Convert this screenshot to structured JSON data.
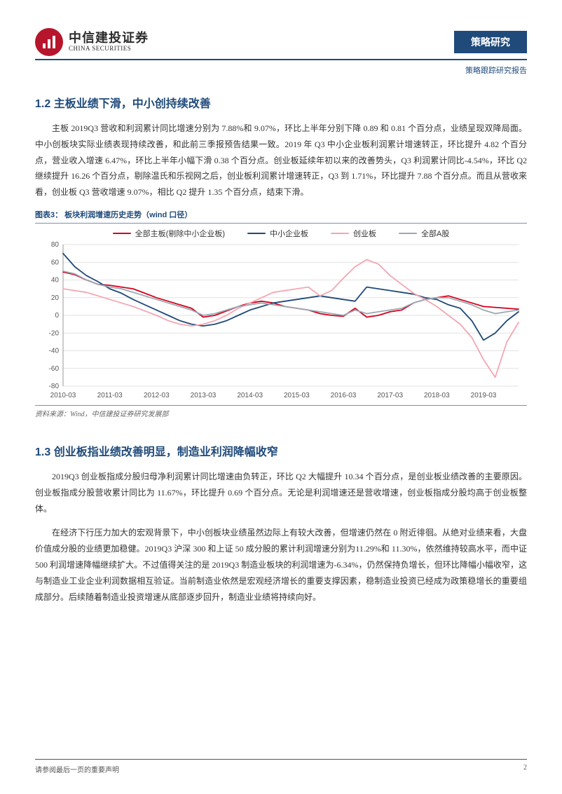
{
  "header": {
    "company_cn": "中信建投证券",
    "company_en": "CHINA SECURITIES",
    "category": "策略研究",
    "subcategory": "策略跟踪研究报告"
  },
  "section_12": {
    "heading": "1.2  主板业绩下滑，中小创持续改善",
    "para": "主板 2019Q3 营收和利润累计同比增速分别为 7.88%和 9.07%，环比上半年分别下降 0.89 和 0.81 个百分点，业绩呈现双降局面。中小创板块实际业绩表现持续改善，和此前三季报预告结果一致。2019 年 Q3 中小企业板利润累计增速转正，环比提升 4.82 个百分点，营业收入增速 6.47%，环比上半年小幅下滑 0.38 个百分点。创业板延续年初以来的改善势头，Q3 利润累计同比-4.54%，环比 Q2 继续提升 16.26 个百分点，剔除温氏和乐视网之后，创业板利润累计增速转正，Q3 到 1.71%，环比提升 7.88 个百分点。而且从营收来看，创业板 Q3 营收增速 9.07%，相比 Q2 提升 1.35 个百分点，结束下滑。"
  },
  "chart": {
    "title": "图表3：  板块利润增速历史走势（wind 口径）",
    "source": "资料来源：Wind，中信建投证券研究发展部",
    "type": "line",
    "background_color": "#ffffff",
    "grid_color": "#d9d9d9",
    "axis_color": "#808080",
    "label_fontsize": 10,
    "x_labels": [
      "2010-03",
      "2011-03",
      "2012-03",
      "2013-03",
      "2014-03",
      "2015-03",
      "2016-03",
      "2017-03",
      "2018-03",
      "2019-03"
    ],
    "ylim": [
      -80,
      80
    ],
    "yticks": [
      -80,
      -60,
      -40,
      -20,
      0,
      20,
      40,
      60,
      80
    ],
    "line_width": 1.8,
    "series": [
      {
        "name": "全部主板(剔除中小企业板)",
        "color": "#d6001c",
        "values": [
          49,
          46,
          40,
          35,
          34,
          32,
          30,
          25,
          20,
          16,
          12,
          8,
          -2,
          0,
          5,
          10,
          14,
          16,
          14,
          10,
          8,
          6,
          2,
          0,
          -1,
          8,
          -2,
          0,
          4,
          6,
          14,
          18,
          20,
          22,
          18,
          14,
          10,
          9,
          8,
          7
        ]
      },
      {
        "name": "中小企业板",
        "color": "#1f4a7a",
        "values": [
          70,
          55,
          45,
          38,
          30,
          25,
          18,
          12,
          6,
          0,
          -6,
          -10,
          -12,
          -10,
          -6,
          0,
          6,
          10,
          14,
          16,
          18,
          20,
          22,
          20,
          18,
          16,
          32,
          30,
          28,
          26,
          24,
          20,
          18,
          12,
          8,
          -6,
          -28,
          -20,
          -6,
          4
        ]
      },
      {
        "name": "创业板",
        "color": "#f4a6b4",
        "values": [
          30,
          28,
          26,
          22,
          18,
          14,
          10,
          5,
          0,
          -6,
          -10,
          -12,
          -10,
          -6,
          0,
          8,
          14,
          20,
          26,
          28,
          30,
          32,
          22,
          28,
          42,
          55,
          63,
          58,
          45,
          35,
          25,
          18,
          10,
          0,
          -10,
          -25,
          -50,
          -70,
          -30,
          -8
        ]
      },
      {
        "name": "全部A股",
        "color": "#9aa9b3",
        "values": [
          50,
          47,
          40,
          35,
          32,
          30,
          26,
          22,
          18,
          14,
          10,
          6,
          0,
          2,
          6,
          10,
          12,
          14,
          12,
          10,
          8,
          6,
          4,
          2,
          0,
          6,
          2,
          4,
          6,
          8,
          14,
          18,
          20,
          20,
          16,
          12,
          6,
          2,
          4,
          6
        ]
      }
    ],
    "points_per_year_gap": 4
  },
  "section_13": {
    "heading": "1.3  创业板指业绩改善明显，制造业利润降幅收窄",
    "para1": "2019Q3 创业板指成分股归母净利润累计同比增速由负转正，环比 Q2 大幅提升 10.34 个百分点，是创业板业绩改善的主要原因。创业板指成分股营收累计同比为 11.67%，环比提升 0.69 个百分点。无论是利润增速还是营收增速，创业板指成分股均高于创业板整体。",
    "para2": "在经济下行压力加大的宏观背景下，中小创板块业绩虽然边际上有较大改善，但增速仍然在 0 附近徘徊。从绝对业绩来看，大盘价值成分股的业绩更加稳健。2019Q3 沪深 300 和上证 50 成分股的累计利润增速分别为11.29%和 11.30%，依然维持较高水平，而中证 500 利润增速降幅继续扩大。不过值得关注的是 2019Q3 制造业板块的利润增速为-6.34%，仍然保持负增长，但环比降幅小幅收窄，这与制造业工业企业利润数据相互验证。当前制造业依然是宏观经济增长的重要支撑因素，稳制造业投资已经成为政策稳增长的重要组成部分。后续随着制造业投资增速从底部逐步回升，制造业业绩将持续向好。"
  },
  "footer": {
    "note": "请参阅最后一页的重要声明",
    "page": "2"
  }
}
